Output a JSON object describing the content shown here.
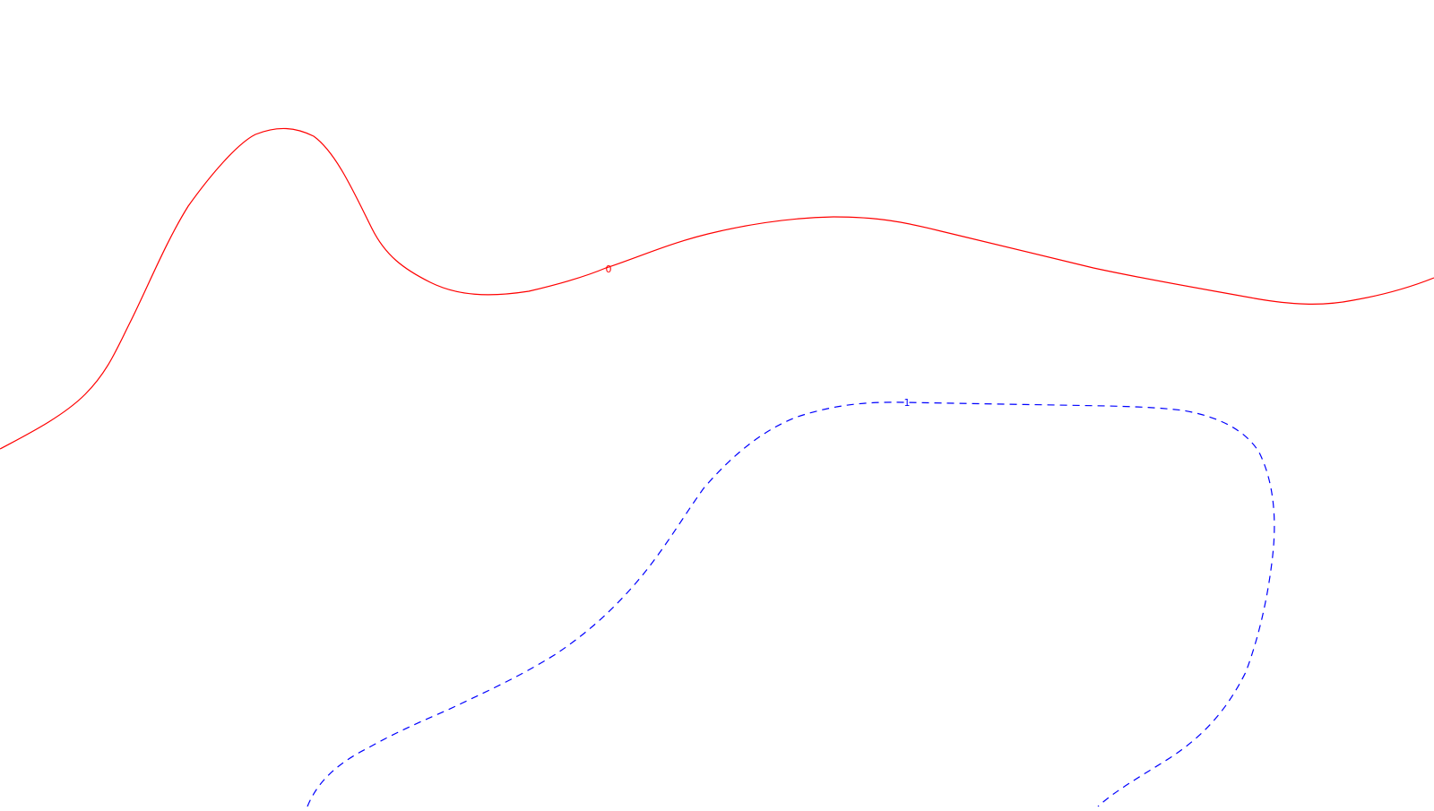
{
  "contours": [
    {
      "level_label": "0",
      "color": "#ff0000",
      "style": "solid"
    },
    {
      "level_label": "1",
      "color": "#0000ff",
      "style": "dashed"
    }
  ]
}
